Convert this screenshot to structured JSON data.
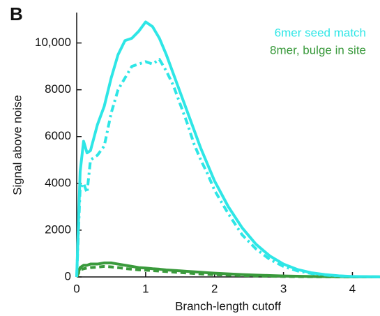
{
  "chart_data": {
    "type": "line",
    "panel_label": "B",
    "xlabel": "Branch-length cutoff",
    "ylabel": "Signal above noise",
    "x": [
      0,
      0.05,
      0.1,
      0.15,
      0.2,
      0.3,
      0.4,
      0.5,
      0.6,
      0.7,
      0.8,
      0.9,
      1.0,
      1.1,
      1.2,
      1.3,
      1.4,
      1.5,
      1.6,
      1.7,
      1.8,
      1.9,
      2.0,
      2.2,
      2.4,
      2.6,
      2.8,
      3.0,
      3.2,
      3.4,
      3.6,
      3.8,
      4.0,
      4.2,
      4.4
    ],
    "series": [
      {
        "name": "6mer seed match",
        "color": "#2ee6e6",
        "values": [
          0,
          4500,
          5800,
          5300,
          5400,
          6500,
          7300,
          8500,
          9500,
          10100,
          10200,
          10500,
          10900,
          10700,
          10200,
          9500,
          8700,
          7900,
          7100,
          6300,
          5500,
          4800,
          4100,
          3000,
          2100,
          1400,
          900,
          550,
          320,
          180,
          100,
          50,
          20,
          10,
          5
        ],
        "values_dashed": [
          0,
          3800,
          4000,
          3600,
          5000,
          5200,
          5600,
          7000,
          8000,
          8500,
          9000,
          9100,
          9200,
          9100,
          9300,
          8800,
          8200,
          7400,
          6600,
          5700,
          5000,
          4400,
          3700,
          2700,
          1800,
          1200,
          750,
          450,
          260,
          150,
          80,
          40,
          15,
          8,
          4
        ]
      },
      {
        "name": "8mer, bulge in site",
        "color": "#3a9a3c",
        "values": [
          0,
          400,
          500,
          500,
          550,
          550,
          600,
          600,
          550,
          500,
          450,
          400,
          380,
          350,
          330,
          300,
          280,
          260,
          240,
          220,
          200,
          180,
          160,
          130,
          100,
          80,
          60,
          40,
          30,
          20,
          15,
          10,
          5,
          3,
          2
        ],
        "values_dashed": [
          0,
          300,
          350,
          380,
          400,
          420,
          450,
          430,
          400,
          360,
          330,
          300,
          290,
          270,
          250,
          230,
          210,
          190,
          170,
          150,
          130,
          110,
          100,
          80,
          60,
          45,
          30,
          20,
          15,
          10,
          8,
          5,
          3,
          2,
          1
        ]
      }
    ],
    "xlim": [
      0,
      4.4
    ],
    "ylim": [
      0,
      11300
    ],
    "xticks": [
      0,
      1,
      2,
      3,
      4
    ],
    "yticks": [
      0,
      2000,
      4000,
      6000,
      8000,
      {
        "value": 10000,
        "label": "10,000"
      }
    ]
  }
}
